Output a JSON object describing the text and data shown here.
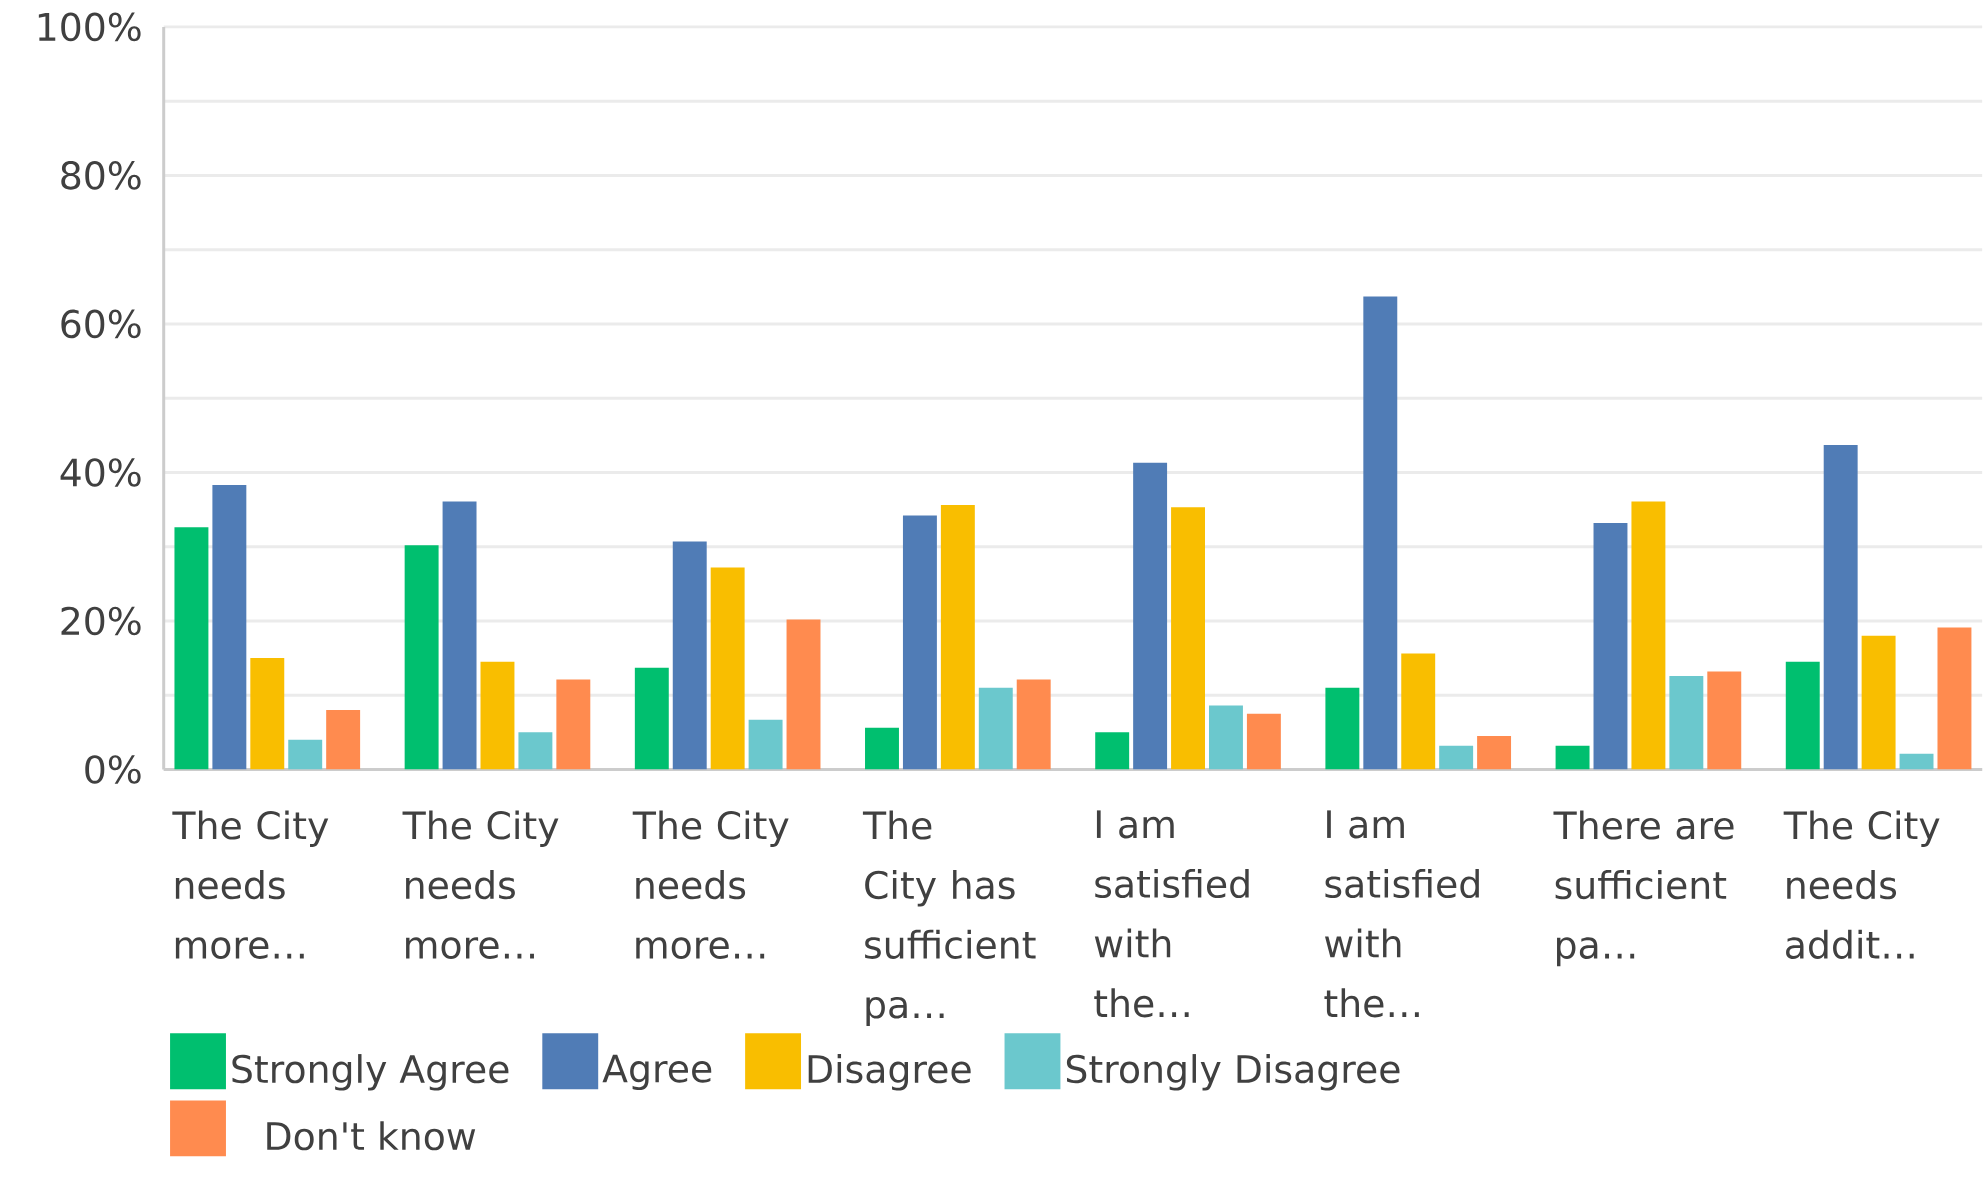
{
  "chart_data": {
    "type": "bar",
    "categories": [
      "The City needs more…",
      "The City needs more…",
      "The City needs more…",
      "The City has sufficient pa…",
      "I am satisfied with the…",
      "I am satisfied with the…",
      "There are sufficient pa…",
      "The City needs addit…"
    ],
    "series": [
      {
        "name": "Strongly Agree",
        "color": "#00bf6f",
        "values": [
          32.6,
          30.2,
          13.7,
          5.6,
          5.0,
          11.0,
          3.2,
          14.5
        ]
      },
      {
        "name": "Agree",
        "color": "#507cb6",
        "values": [
          38.3,
          36.1,
          30.7,
          34.2,
          41.3,
          63.7,
          33.2,
          43.7
        ]
      },
      {
        "name": "Disagree",
        "color": "#f9be00",
        "values": [
          15.0,
          14.5,
          27.2,
          35.6,
          35.3,
          15.6,
          36.1,
          18.0
        ]
      },
      {
        "name": "Strongly Disagree",
        "color": "#6bc8cd",
        "values": [
          4.0,
          5.0,
          6.7,
          11.0,
          8.6,
          3.2,
          12.6,
          2.1
        ]
      },
      {
        "name": "Don't know",
        "color": "#ff8b4f",
        "values": [
          8.0,
          12.1,
          20.2,
          12.1,
          7.5,
          4.5,
          13.2,
          19.1
        ]
      }
    ],
    "ylim": [
      0,
      100
    ],
    "yticks": [
      {
        "value": 0,
        "label": "0%"
      },
      {
        "value": 10,
        "label": null
      },
      {
        "value": 20,
        "label": "20%"
      },
      {
        "value": 30,
        "label": null
      },
      {
        "value": 40,
        "label": "40%"
      },
      {
        "value": 50,
        "label": null
      },
      {
        "value": 60,
        "label": "60%"
      },
      {
        "value": 70,
        "label": null
      },
      {
        "value": 80,
        "label": "80%"
      },
      {
        "value": 90,
        "label": null
      },
      {
        "value": 100,
        "label": "100%"
      }
    ],
    "grid": "y",
    "legend": "bottom"
  }
}
